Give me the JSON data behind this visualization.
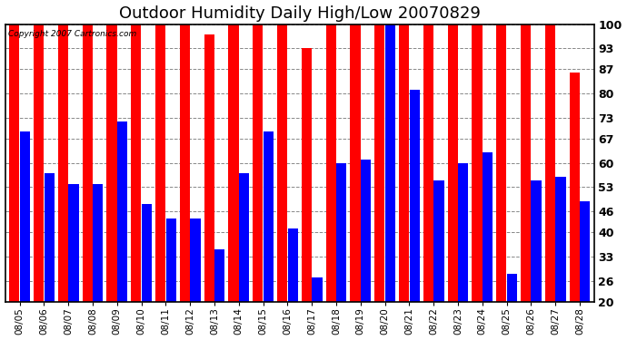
{
  "title": "Outdoor Humidity Daily High/Low 20070829",
  "copyright_text": "Copyright 2007 Cartronics.com",
  "dates": [
    "08/05",
    "08/06",
    "08/07",
    "08/08",
    "08/09",
    "08/10",
    "08/11",
    "08/12",
    "08/13",
    "08/14",
    "08/15",
    "08/16",
    "08/17",
    "08/18",
    "08/19",
    "08/20",
    "08/21",
    "08/22",
    "08/23",
    "08/24",
    "08/25",
    "08/26",
    "08/27",
    "08/28"
  ],
  "highs": [
    100,
    100,
    100,
    100,
    100,
    100,
    100,
    100,
    97,
    100,
    100,
    100,
    93,
    100,
    100,
    100,
    100,
    100,
    100,
    100,
    100,
    100,
    100,
    86
  ],
  "lows": [
    69,
    57,
    54,
    54,
    72,
    48,
    44,
    44,
    35,
    57,
    69,
    41,
    27,
    60,
    61,
    100,
    81,
    55,
    60,
    63,
    28,
    55,
    56,
    49
  ],
  "high_color": "#ff0000",
  "low_color": "#0000ff",
  "bg_color": "#ffffff",
  "plot_bg_color": "#ffffff",
  "yticks": [
    20,
    26,
    33,
    40,
    46,
    53,
    60,
    67,
    73,
    80,
    87,
    93,
    100
  ],
  "ymin": 20,
  "ymax": 100,
  "grid_color": "#888888",
  "title_fontsize": 13,
  "bar_bottom": 20
}
